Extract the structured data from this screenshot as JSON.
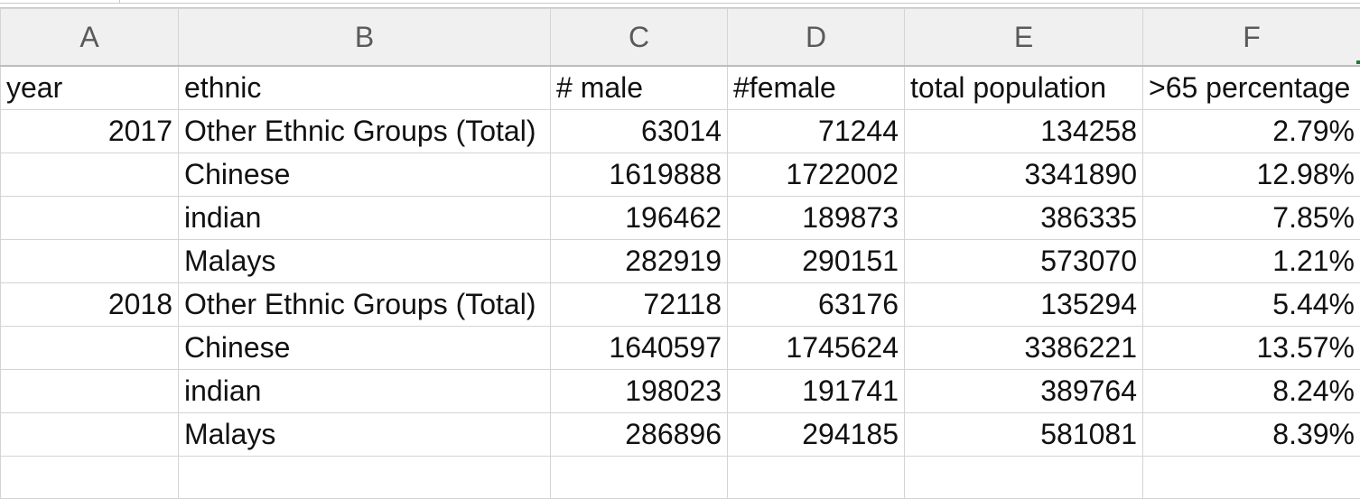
{
  "columns": [
    "A",
    "B",
    "C",
    "D",
    "E",
    "F"
  ],
  "header": [
    "year",
    "ethnic",
    "# male",
    "#female",
    "total population",
    ">65 percentage"
  ],
  "rows": [
    [
      "2017",
      "Other Ethnic Groups (Total)",
      "63014",
      "71244",
      "134258",
      "2.79%"
    ],
    [
      "",
      "Chinese",
      "1619888",
      "1722002",
      "3341890",
      "12.98%"
    ],
    [
      "",
      "indian",
      "196462",
      "189873",
      "386335",
      "7.85%"
    ],
    [
      "",
      "Malays",
      "282919",
      "290151",
      "573070",
      "1.21%"
    ],
    [
      "2018",
      "Other Ethnic Groups (Total)",
      "72118",
      "63176",
      "135294",
      "5.44%"
    ],
    [
      "",
      "Chinese",
      "1640597",
      "1745624",
      "3386221",
      "13.57%"
    ],
    [
      "",
      "indian",
      "198023",
      "191741",
      "389764",
      "8.24%"
    ],
    [
      "",
      "Malays",
      "286896",
      "294185",
      "581081",
      "8.39%"
    ]
  ],
  "colors": {
    "grid": "#d4d4d4",
    "header_bg": "#f0f0f0",
    "header_text": "#5a5a5a",
    "accent": "#1f7a3a"
  }
}
